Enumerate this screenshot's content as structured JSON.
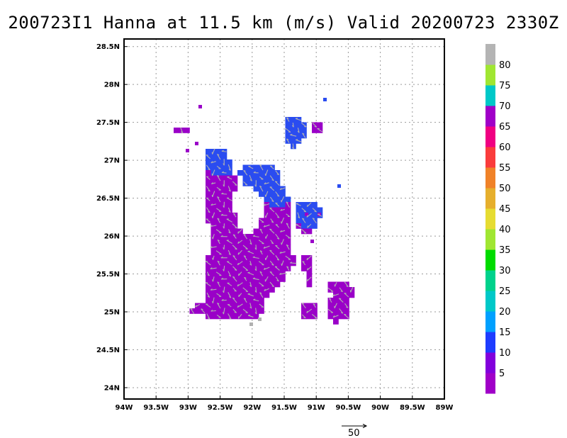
{
  "title": "200723I1 Hanna at 11.5 km (m/s) Valid 20200723 2330Z",
  "axes": {
    "lat_ticks": [
      "24N",
      "24.5N",
      "25N",
      "25.5N",
      "26N",
      "26.5N",
      "27N",
      "27.5N",
      "28N",
      "28.5N"
    ],
    "lat_values": [
      24,
      24.5,
      25,
      25.5,
      26,
      26.5,
      27,
      27.5,
      28,
      28.5
    ],
    "lon_ticks": [
      "94W",
      "93.5W",
      "93W",
      "92.5W",
      "92W",
      "91.5W",
      "91W",
      "90.5W",
      "90W",
      "89.5W",
      "89W"
    ],
    "lon_values": [
      -94,
      -93.5,
      -93,
      -92.5,
      -92,
      -91.5,
      -91,
      -90.5,
      -90,
      -89.5,
      -89
    ],
    "lat_range": [
      23.85,
      28.6
    ],
    "lon_range": [
      -94,
      -89
    ],
    "grid": "dotted"
  },
  "colorbar": {
    "labels": [
      "5",
      "10",
      "15",
      "20",
      "25",
      "30",
      "35",
      "40",
      "45",
      "50",
      "55",
      "60",
      "65",
      "70",
      "75",
      "80"
    ],
    "colors": [
      "#a000c8",
      "#8200dc",
      "#1e3cff",
      "#00a0ff",
      "#00c8c8",
      "#00d28c",
      "#00dc00",
      "#a0e632",
      "#e6dc32",
      "#e6af2d",
      "#f08228",
      "#fa3c3c",
      "#f00082",
      "#a000c8",
      "#00c8c8",
      "#a0e632",
      "#b4b4b4"
    ]
  },
  "vector_key": {
    "label": "50"
  },
  "chart_data": {
    "type": "heatmap",
    "title": "200723I1 Hanna at 11.5 km (m/s) Valid 20200723 2330Z",
    "variable": "wind speed (m/s) with wind vectors",
    "dominant_range_ms": [
      0,
      10
    ],
    "regions": [
      {
        "name": "main-band",
        "lon_range": [
          -92.85,
          -91.4
        ],
        "lat_range": [
          24.95,
          26.95
        ],
        "speed_class": "0-5"
      },
      {
        "name": "north-band",
        "lon_range": [
          -92.5,
          -91.2
        ],
        "lat_range": [
          26.45,
          27.1
        ],
        "speed_class": "5-10"
      },
      {
        "name": "northeast-cell",
        "lon_range": [
          -91.4,
          -91.0
        ],
        "lat_range": [
          27.1,
          27.55
        ],
        "speed_class": "5-10"
      },
      {
        "name": "east-cell",
        "lon_range": [
          -91.4,
          -90.9
        ],
        "lat_range": [
          26.1,
          26.45
        ],
        "speed_class": "5-10"
      },
      {
        "name": "southeast-cells",
        "lon_range": [
          -91.0,
          -90.4
        ],
        "lat_range": [
          24.85,
          25.4
        ],
        "speed_class": "0-5"
      }
    ]
  }
}
